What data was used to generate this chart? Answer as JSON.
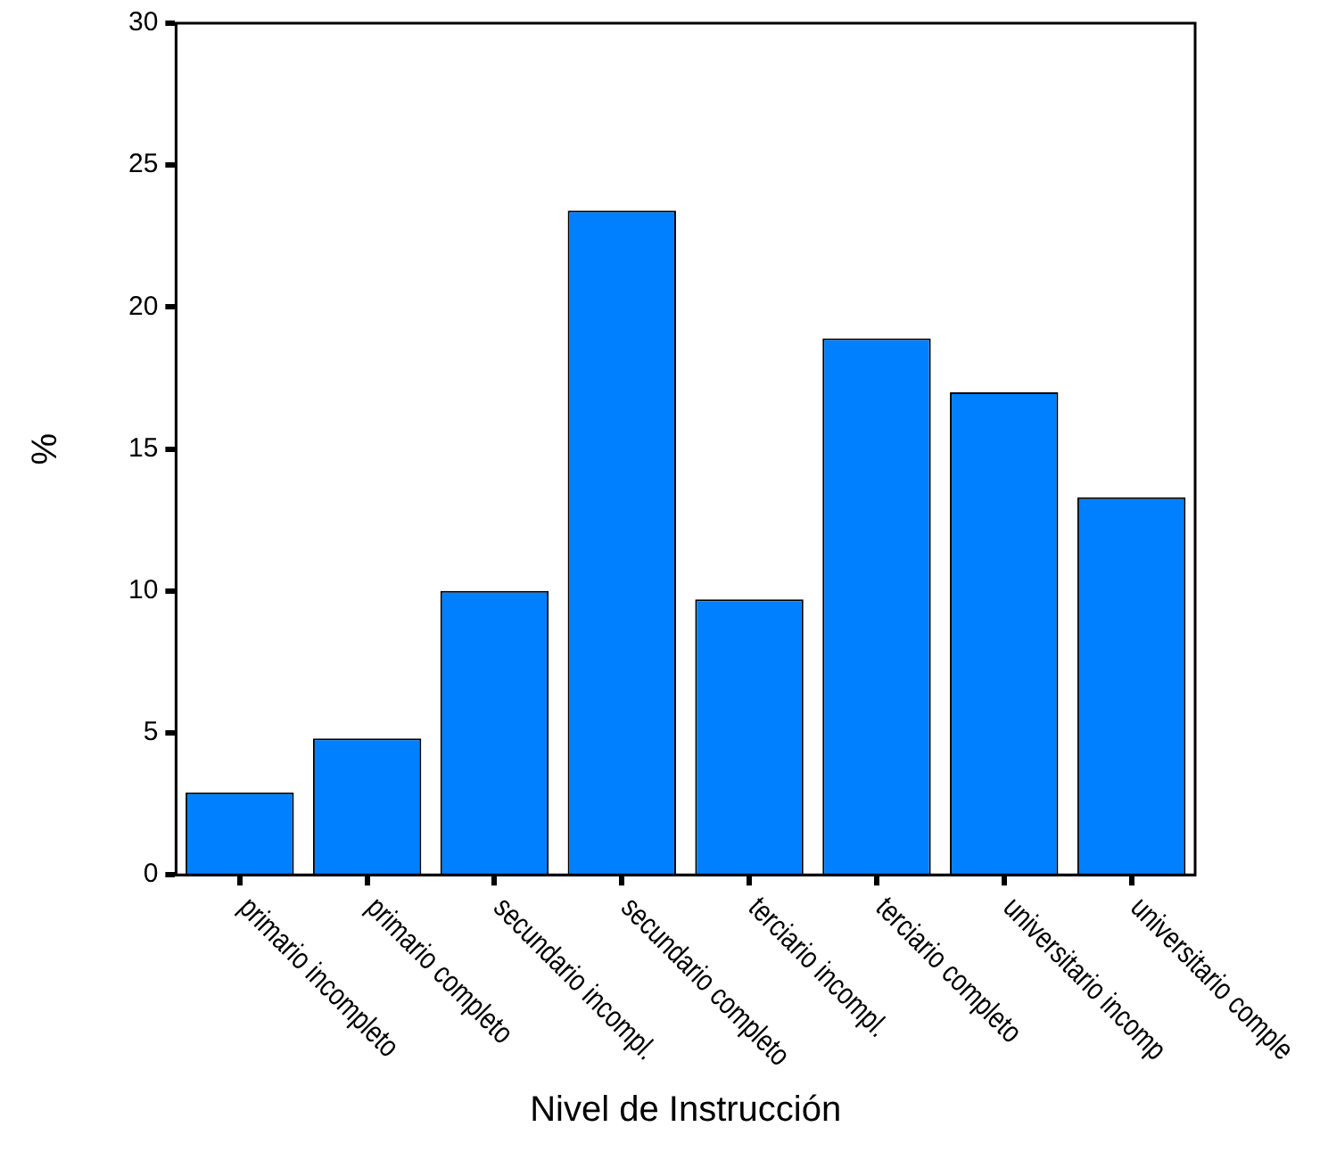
{
  "chart_data": {
    "type": "bar",
    "xlabel": "Nivel de Instrucción",
    "ylabel": "%",
    "categories": [
      "primario incompleto",
      "primario completo",
      "secundario incompl.",
      "secundario completo",
      "terciario incompl.",
      "terciario completo",
      "universitario incomp",
      "universitario comple"
    ],
    "values": [
      2.9,
      4.8,
      10.0,
      23.4,
      9.7,
      18.9,
      17.0,
      13.3
    ],
    "color": "#0080ff",
    "ylim": [
      0,
      30
    ],
    "yticks": [
      0,
      5,
      10,
      15,
      20,
      25,
      30
    ]
  }
}
